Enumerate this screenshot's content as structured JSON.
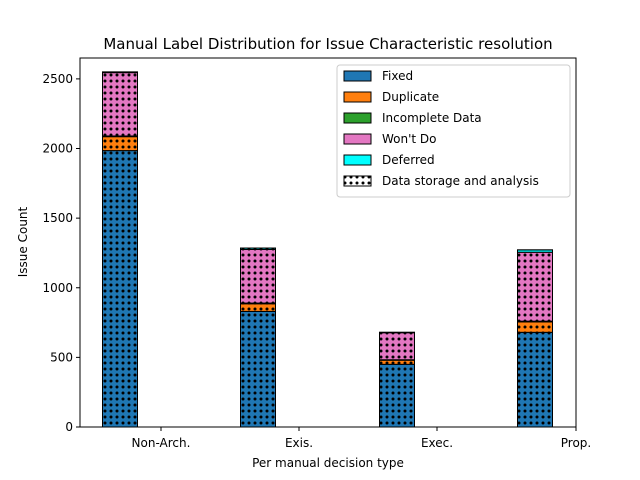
{
  "chart_data": {
    "type": "bar",
    "stacked": true,
    "title": "Manual Label Distribution for Issue Characteristic resolution",
    "xlabel": "Per manual decision type",
    "ylabel": "Issue Count",
    "categories": [
      "Non-Arch.",
      "Exis.",
      "Exec.",
      "Prop."
    ],
    "ylim": [
      0,
      2650
    ],
    "yticks": [
      0,
      500,
      1000,
      1500,
      2000,
      2500
    ],
    "grid": false,
    "legend_position": "top-right",
    "series": [
      {
        "name": "Fixed",
        "color": "#1f77b4",
        "values": [
          1985,
          830,
          450,
          680
        ]
      },
      {
        "name": "Duplicate",
        "color": "#ff7f0e",
        "values": [
          100,
          55,
          30,
          75
        ]
      },
      {
        "name": "Incomplete Data",
        "color": "#2ca02c",
        "values": [
          5,
          5,
          3,
          5
        ]
      },
      {
        "name": "Won't Do",
        "color": "#e377c2",
        "values": [
          455,
          385,
          195,
          495
        ]
      },
      {
        "name": "Deferred",
        "color": "#00ffff",
        "values": [
          5,
          10,
          2,
          17
        ]
      }
    ],
    "hatch_series": {
      "name": "Data storage and analysis",
      "pattern": "dots"
    }
  }
}
